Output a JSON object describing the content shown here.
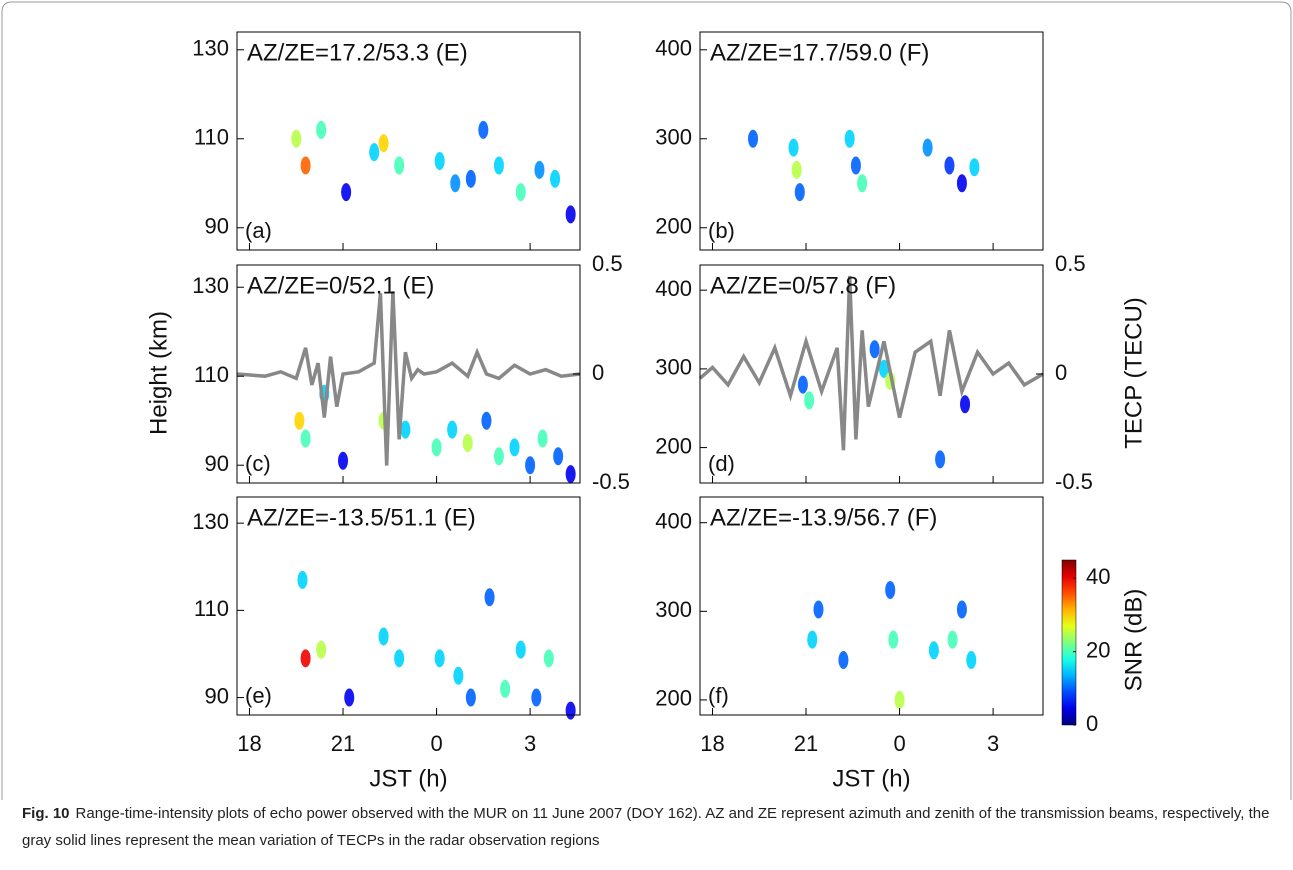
{
  "chart_data": [
    {
      "type": "scatter",
      "annotation": "AZ/ZE=17.2/53.3 (E)",
      "panel_label": "(a)",
      "xlim": [
        17.6,
        28.6
      ],
      "xticks": [
        18,
        21,
        24,
        27
      ],
      "ylim": [
        85,
        134
      ],
      "yticks": [
        90,
        110,
        130
      ],
      "echoes": {
        "x": [
          19.5,
          19.8,
          20.3,
          21.1,
          22.0,
          22.3,
          22.8,
          24.1,
          24.6,
          25.1,
          25.5,
          26.0,
          26.7,
          27.3,
          27.8,
          28.3
        ],
        "y": [
          110,
          104,
          112,
          98,
          107,
          109,
          104,
          105,
          100,
          101,
          112,
          104,
          98,
          103,
          101,
          93
        ],
        "snr": [
          25,
          35,
          20,
          5,
          15,
          30,
          20,
          15,
          12,
          10,
          10,
          15,
          20,
          12,
          15,
          5
        ]
      }
    },
    {
      "type": "scatter",
      "annotation": "AZ/ZE=17.7/59.0 (F)",
      "panel_label": "(b)",
      "xlim": [
        17.6,
        28.6
      ],
      "xticks": [
        18,
        21,
        24,
        27
      ],
      "ylim": [
        175,
        420
      ],
      "yticks": [
        200,
        300,
        400
      ],
      "echoes": {
        "x": [
          19.3,
          20.6,
          20.7,
          20.8,
          22.4,
          22.6,
          22.8,
          24.9,
          25.6,
          26.0,
          26.4
        ],
        "y": [
          300,
          290,
          265,
          240,
          300,
          270,
          250,
          290,
          270,
          250,
          268
        ],
        "snr": [
          10,
          15,
          25,
          10,
          15,
          10,
          20,
          12,
          8,
          5,
          15
        ]
      }
    },
    {
      "type": "scatter",
      "annotation": "AZ/ZE=0/52.1 (E)",
      "panel_label": "(c)",
      "xlim": [
        17.6,
        28.6
      ],
      "xticks": [
        18,
        21,
        24,
        27
      ],
      "ylim": [
        86,
        135
      ],
      "yticks": [
        90,
        110,
        130
      ],
      "y2lim": [
        -0.5,
        0.5
      ],
      "y2ticks": [
        -0.5,
        0,
        0.5
      ],
      "echoes": {
        "x": [
          19.6,
          19.8,
          20.4,
          21.0,
          22.3,
          23.0,
          24.0,
          24.5,
          25.0,
          25.6,
          26.0,
          26.5,
          27.0,
          27.4,
          27.9,
          28.3
        ],
        "y": [
          100,
          96,
          106,
          91,
          100,
          98,
          94,
          98,
          95,
          100,
          92,
          94,
          90,
          96,
          92,
          88
        ],
        "snr": [
          30,
          20,
          15,
          5,
          25,
          15,
          20,
          15,
          25,
          10,
          20,
          15,
          10,
          20,
          10,
          5
        ]
      },
      "tecp": {
        "color": "#888888",
        "axis": "y2",
        "x": [
          17.6,
          18.5,
          19.0,
          19.5,
          19.8,
          20.0,
          20.2,
          20.4,
          20.6,
          20.8,
          21.0,
          21.5,
          22.0,
          22.2,
          22.4,
          22.6,
          22.8,
          23.0,
          23.2,
          23.4,
          23.6,
          24.0,
          24.5,
          25.0,
          25.3,
          25.6,
          26.0,
          26.5,
          27.0,
          27.5,
          28.0,
          28.6
        ],
        "values": [
          0,
          -0.01,
          0.01,
          -0.02,
          0.12,
          -0.05,
          0.05,
          -0.2,
          0.08,
          -0.15,
          0,
          0.01,
          0.05,
          0.37,
          -0.42,
          0.38,
          -0.3,
          0.1,
          -0.02,
          0.02,
          0,
          0.01,
          0.05,
          -0.01,
          0.1,
          0,
          -0.02,
          0.04,
          0,
          0.02,
          -0.01,
          0
        ]
      }
    },
    {
      "type": "scatter",
      "annotation": "AZ/ZE=0/57.8 (F)",
      "panel_label": "(d)",
      "xlim": [
        17.6,
        28.6
      ],
      "xticks": [
        18,
        21,
        24,
        27
      ],
      "ylim": [
        155,
        432
      ],
      "yticks": [
        200,
        300,
        400
      ],
      "y2lim": [
        -0.5,
        0.5
      ],
      "y2ticks": [
        -0.5,
        0,
        0.5
      ],
      "echoes": {
        "x": [
          20.9,
          21.1,
          23.5,
          23.7,
          26.1,
          25.3,
          23.2
        ],
        "y": [
          280,
          260,
          300,
          285,
          255,
          185,
          325
        ],
        "snr": [
          10,
          20,
          15,
          25,
          5,
          10,
          10
        ]
      },
      "tecp": {
        "color": "#888888",
        "axis": "y2",
        "x": [
          17.6,
          18.0,
          18.5,
          19.0,
          19.5,
          20.0,
          20.5,
          21.0,
          21.5,
          22.0,
          22.2,
          22.4,
          22.6,
          22.8,
          23.0,
          23.5,
          24.0,
          24.5,
          25.0,
          25.3,
          25.6,
          26.0,
          26.5,
          27.0,
          27.5,
          28.0,
          28.6
        ],
        "values": [
          -0.02,
          0.03,
          -0.05,
          0.08,
          -0.04,
          0.12,
          -0.1,
          0.15,
          -0.08,
          0.12,
          -0.35,
          0.45,
          -0.3,
          0.2,
          -0.15,
          0.15,
          -0.2,
          0.1,
          0.15,
          -0.1,
          0.2,
          -0.08,
          0.1,
          0,
          0.05,
          -0.05,
          0
        ]
      }
    },
    {
      "type": "scatter",
      "annotation": "AZ/ZE=-13.5/51.1 (E)",
      "panel_label": "(e)",
      "xlabel": "JST (h)",
      "xlim": [
        17.6,
        28.6
      ],
      "xticks": [
        18,
        21,
        {
          "value": 24,
          "label": "0"
        },
        {
          "value": 27,
          "label": "3"
        }
      ],
      "ylim": [
        86,
        136
      ],
      "yticks": [
        90,
        110,
        130
      ],
      "echoes": {
        "x": [
          19.7,
          19.8,
          20.3,
          21.2,
          22.3,
          22.8,
          24.1,
          24.7,
          25.1,
          25.7,
          26.2,
          26.7,
          27.2,
          27.6,
          28.3
        ],
        "y": [
          117,
          99,
          101,
          90,
          104,
          99,
          99,
          95,
          90,
          113,
          92,
          101,
          90,
          99,
          87
        ],
        "snr": [
          15,
          40,
          25,
          5,
          15,
          15,
          15,
          15,
          10,
          10,
          20,
          15,
          10,
          20,
          5
        ]
      }
    },
    {
      "type": "scatter",
      "annotation": "AZ/ZE=-13.9/56.7 (F)",
      "panel_label": "(f)",
      "xlabel": "JST (h)",
      "xlim": [
        17.6,
        28.6
      ],
      "xticks": [
        18,
        21,
        {
          "value": 24,
          "label": "0"
        },
        {
          "value": 27,
          "label": "3"
        }
      ],
      "ylim": [
        183,
        429
      ],
      "yticks": [
        200,
        300,
        400
      ],
      "echoes": {
        "x": [
          21.2,
          21.4,
          22.2,
          23.7,
          23.8,
          24.0,
          25.1,
          25.7,
          26.0,
          26.3
        ],
        "y": [
          268,
          302,
          245,
          324,
          268,
          200,
          256,
          268,
          302,
          245
        ],
        "snr": [
          15,
          10,
          10,
          10,
          20,
          25,
          15,
          20,
          10,
          15
        ]
      }
    }
  ],
  "figure": {
    "ylabel": "Height (km)",
    "y2label": "TECP (TECU)",
    "colorbar": {
      "label": "SNR (dB)",
      "clim": [
        0,
        45
      ],
      "ticks": [
        0,
        20,
        40
      ],
      "colormap": "jet"
    },
    "caption_label": "Fig. 10",
    "caption": "Range-time-intensity plots of echo power observed with the MUR on 11 June 2007 (DOY 162). AZ and ZE represent azimuth and zenith of the transmission beams, respectively, the gray solid lines represent the mean variation of TECPs in the radar observation regions"
  }
}
